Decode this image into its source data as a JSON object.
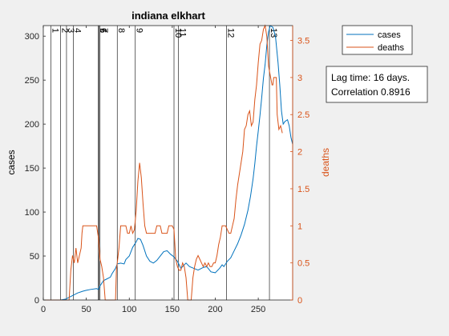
{
  "chart_data": {
    "type": "line",
    "title": "indiana elkhart",
    "xlabel": "",
    "ylabel_left": "cases",
    "ylabel_right": "deaths",
    "xlim": [
      0,
      290
    ],
    "ylim_left": [
      0,
      312
    ],
    "ylim_right": [
      0,
      3.7
    ],
    "x_ticks": [
      0,
      50,
      100,
      150,
      200,
      250
    ],
    "y_ticks_left": [
      0,
      50,
      100,
      150,
      200,
      250,
      300
    ],
    "y_ticks_right": [
      0,
      0.5,
      1,
      1.5,
      2,
      2.5,
      3,
      3.5
    ],
    "y_tick_labels_right": [
      "0",
      "0.5",
      "1",
      "1.5",
      "2",
      "2.5",
      "3",
      "3.5"
    ],
    "legend": {
      "placement": "top-right-outside",
      "entries": [
        "cases",
        "deaths"
      ]
    },
    "annotation": {
      "line1": "Lag time: 16 days.",
      "line2": "Correlation 0.8916"
    },
    "events": [
      {
        "x": 9,
        "label": "1"
      },
      {
        "x": 20,
        "label": "2"
      },
      {
        "x": 27,
        "label": "3"
      },
      {
        "x": 35,
        "label": "4"
      },
      {
        "x": 64,
        "label": "5"
      },
      {
        "x": 65,
        "label": "6"
      },
      {
        "x": 66,
        "label": "7"
      },
      {
        "x": 86,
        "label": "8"
      },
      {
        "x": 107,
        "label": "9"
      },
      {
        "x": 152,
        "label": "10"
      },
      {
        "x": 157,
        "label": "11"
      },
      {
        "x": 213,
        "label": "12"
      },
      {
        "x": 263,
        "label": "13"
      }
    ],
    "series": [
      {
        "name": "cases",
        "color": "#0072bd",
        "axis": "left",
        "points": [
          [
            0,
            0
          ],
          [
            20,
            0
          ],
          [
            26,
            1
          ],
          [
            32,
            4
          ],
          [
            40,
            8
          ],
          [
            46,
            10
          ],
          [
            50,
            11
          ],
          [
            55,
            12
          ],
          [
            62,
            13
          ],
          [
            64,
            12
          ],
          [
            66,
            16
          ],
          [
            70,
            22
          ],
          [
            74,
            24
          ],
          [
            78,
            26
          ],
          [
            80,
            30
          ],
          [
            84,
            36
          ],
          [
            86,
            41
          ],
          [
            90,
            42
          ],
          [
            94,
            41
          ],
          [
            96,
            46
          ],
          [
            100,
            50
          ],
          [
            104,
            60
          ],
          [
            108,
            66
          ],
          [
            110,
            70
          ],
          [
            113,
            69
          ],
          [
            116,
            62
          ],
          [
            120,
            50
          ],
          [
            124,
            44
          ],
          [
            128,
            42
          ],
          [
            132,
            45
          ],
          [
            136,
            50
          ],
          [
            140,
            55
          ],
          [
            144,
            56
          ],
          [
            148,
            52
          ],
          [
            152,
            49
          ],
          [
            156,
            44
          ],
          [
            158,
            40
          ],
          [
            160,
            36
          ],
          [
            162,
            38
          ],
          [
            166,
            42
          ],
          [
            170,
            38
          ],
          [
            175,
            36
          ],
          [
            180,
            34
          ],
          [
            186,
            37
          ],
          [
            190,
            38
          ],
          [
            195,
            32
          ],
          [
            200,
            31
          ],
          [
            205,
            36
          ],
          [
            208,
            40
          ],
          [
            210,
            38
          ],
          [
            214,
            44
          ],
          [
            218,
            48
          ],
          [
            222,
            56
          ],
          [
            226,
            64
          ],
          [
            230,
            74
          ],
          [
            234,
            86
          ],
          [
            238,
            102
          ],
          [
            241,
            118
          ],
          [
            244,
            138
          ],
          [
            246,
            155
          ],
          [
            248,
            175
          ],
          [
            250,
            192
          ],
          [
            252,
            210
          ],
          [
            254,
            230
          ],
          [
            256,
            252
          ],
          [
            258,
            268
          ],
          [
            260,
            290
          ],
          [
            262,
            305
          ],
          [
            264,
            312
          ],
          [
            267,
            310
          ],
          [
            270,
            300
          ],
          [
            273,
            270
          ],
          [
            275,
            245
          ],
          [
            277,
            215
          ],
          [
            279,
            200
          ],
          [
            281,
            203
          ],
          [
            284,
            205
          ],
          [
            286,
            198
          ],
          [
            288,
            185
          ],
          [
            290,
            177
          ]
        ]
      },
      {
        "name": "deaths",
        "color": "#d95319",
        "axis": "right",
        "points": [
          [
            0,
            0
          ],
          [
            30,
            0
          ],
          [
            32,
            0.4
          ],
          [
            34,
            0.6
          ],
          [
            36,
            0.5
          ],
          [
            38,
            0.7
          ],
          [
            40,
            0.5
          ],
          [
            42,
            0.6
          ],
          [
            44,
            0.7
          ],
          [
            45,
            0.9
          ],
          [
            46,
            1.0
          ],
          [
            62,
            1.0
          ],
          [
            64,
            0.85
          ],
          [
            66,
            0.55
          ],
          [
            68,
            0.45
          ],
          [
            70,
            0.3
          ],
          [
            72,
            0.0
          ],
          [
            84,
            0.0
          ],
          [
            85,
            0.4
          ],
          [
            86,
            0.5
          ],
          [
            88,
            0.7
          ],
          [
            90,
            1.0
          ],
          [
            96,
            1.0
          ],
          [
            98,
            0.9
          ],
          [
            100,
            0.9
          ],
          [
            102,
            1.0
          ],
          [
            104,
            0.9
          ],
          [
            106,
            0.95
          ],
          [
            108,
            1.2
          ],
          [
            110,
            1.6
          ],
          [
            112,
            1.85
          ],
          [
            114,
            1.65
          ],
          [
            116,
            1.3
          ],
          [
            118,
            1.0
          ],
          [
            120,
            0.9
          ],
          [
            130,
            0.9
          ],
          [
            132,
            1.0
          ],
          [
            136,
            1.0
          ],
          [
            138,
            0.9
          ],
          [
            144,
            0.9
          ],
          [
            146,
            1.0
          ],
          [
            150,
            1.0
          ],
          [
            152,
            0.95
          ],
          [
            154,
            0.55
          ],
          [
            156,
            0.45
          ],
          [
            158,
            0.4
          ],
          [
            160,
            0.4
          ],
          [
            162,
            0.5
          ],
          [
            164,
            0.45
          ],
          [
            166,
            0.3
          ],
          [
            168,
            0.0
          ],
          [
            172,
            0.0
          ],
          [
            174,
            0.3
          ],
          [
            176,
            0.45
          ],
          [
            178,
            0.55
          ],
          [
            180,
            0.6
          ],
          [
            182,
            0.55
          ],
          [
            184,
            0.5
          ],
          [
            186,
            0.45
          ],
          [
            188,
            0.5
          ],
          [
            190,
            0.45
          ],
          [
            192,
            0.5
          ],
          [
            194,
            0.45
          ],
          [
            196,
            0.45
          ],
          [
            198,
            0.5
          ],
          [
            200,
            0.5
          ],
          [
            202,
            0.6
          ],
          [
            204,
            0.75
          ],
          [
            206,
            0.85
          ],
          [
            208,
            1.0
          ],
          [
            212,
            1.0
          ],
          [
            214,
            0.95
          ],
          [
            216,
            0.9
          ],
          [
            218,
            0.9
          ],
          [
            220,
            1.0
          ],
          [
            222,
            1.1
          ],
          [
            224,
            1.35
          ],
          [
            226,
            1.55
          ],
          [
            228,
            1.7
          ],
          [
            230,
            1.85
          ],
          [
            232,
            2.0
          ],
          [
            234,
            2.3
          ],
          [
            236,
            2.35
          ],
          [
            238,
            2.5
          ],
          [
            240,
            2.55
          ],
          [
            242,
            2.35
          ],
          [
            244,
            2.4
          ],
          [
            246,
            2.7
          ],
          [
            248,
            2.9
          ],
          [
            250,
            3.2
          ],
          [
            252,
            3.45
          ],
          [
            254,
            3.5
          ],
          [
            256,
            3.65
          ],
          [
            258,
            3.7
          ],
          [
            260,
            3.55
          ],
          [
            262,
            3.15
          ],
          [
            266,
            2.9
          ],
          [
            267,
            2.9
          ],
          [
            268,
            3.0
          ],
          [
            271,
            3.0
          ],
          [
            272,
            2.5
          ],
          [
            274,
            2.3
          ],
          [
            276,
            2.35
          ],
          [
            278,
            2.25
          ]
        ]
      }
    ]
  }
}
